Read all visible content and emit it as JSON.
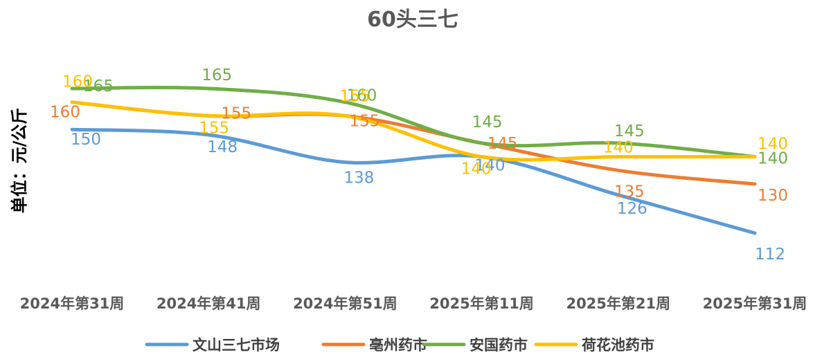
{
  "chart_data": {
    "type": "line",
    "title": "60头三七",
    "xlabel": "",
    "ylabel": "单位：元/公斤",
    "categories": [
      "2024年第31周",
      "2024年第41周",
      "2024年第51周",
      "2025年第11周",
      "2025年第21周",
      "2025年第31周"
    ],
    "ylim": [
      100,
      175
    ],
    "grid": false,
    "legend_position": "bottom",
    "series": [
      {
        "name": "文山三七市场",
        "color": "#5B9BD5",
        "values": [
          150,
          148,
          138,
          140,
          126,
          112
        ]
      },
      {
        "name": "亳州药市",
        "color": "#ED7D31",
        "values": [
          160,
          155,
          155,
          145,
          135,
          130
        ]
      },
      {
        "name": "安国药市",
        "color": "#70AD47",
        "values": [
          165,
          165,
          160,
          145,
          145,
          140
        ]
      },
      {
        "name": "荷花池药市",
        "color": "#FFC000",
        "values": [
          160,
          155,
          155,
          140,
          140,
          140
        ]
      }
    ]
  }
}
